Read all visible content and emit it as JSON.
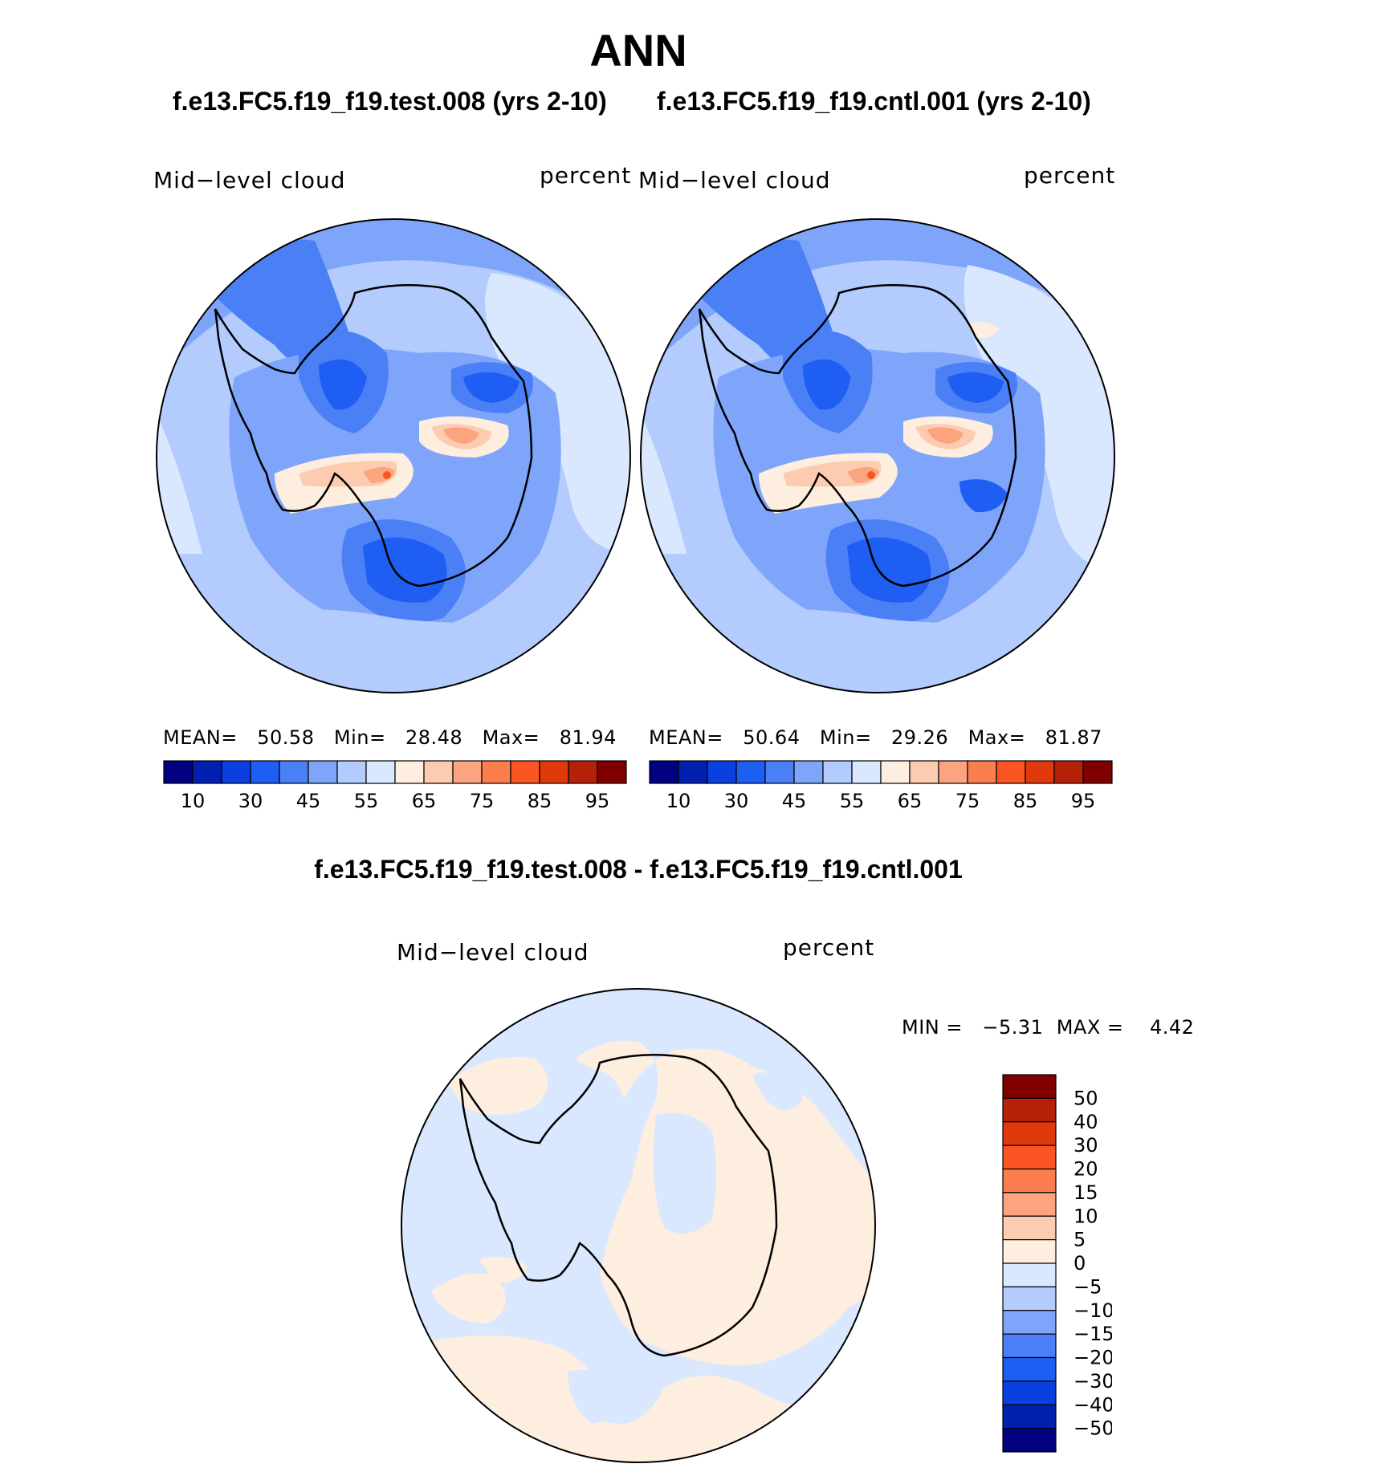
{
  "figure": {
    "season": "ANN",
    "test_case": "f.e13.FC5.f19_f19.test.008 (yrs 2-10)",
    "control_case": "f.e13.FC5.f19_f19.cntl.001 (yrs 2-10)",
    "difference_title": "f.e13.FC5.f19_f19.test.008 - f.e13.FC5.f19_f19.cntl.001"
  },
  "panels": [
    {
      "variable": "Mid−level cloud",
      "units": "percent",
      "mean_label": "MEAN=",
      "mean": "50.58",
      "min_label": "Min=",
      "min": "28.48",
      "max_label": "Max=",
      "max": "81.94"
    },
    {
      "variable": "Mid−level cloud",
      "units": "percent",
      "mean_label": "MEAN=",
      "mean": "50.64",
      "min_label": "Min=",
      "min": "29.26",
      "max_label": "Max=",
      "max": "81.87"
    }
  ],
  "diff_panel": {
    "variable": "Mid−level cloud",
    "units": "percent",
    "min_label": "MIN =",
    "min": "−5.31",
    "max_label": "MAX =",
    "max": "4.42"
  },
  "colorbar_abs": {
    "colors": [
      "#000080",
      "#0020b0",
      "#0a40e0",
      "#1f5ef2",
      "#4a7ff6",
      "#7fa5fb",
      "#b3cbfd",
      "#d9e8fe",
      "#feeee0",
      "#fdcbb0",
      "#fca480",
      "#fb7f4e",
      "#fa5522",
      "#e03a0c",
      "#b52008",
      "#800000"
    ],
    "tick_labels": [
      "10",
      "30",
      "45",
      "55",
      "65",
      "75",
      "85",
      "95"
    ]
  },
  "colorbar_diff": {
    "colors": [
      "#800000",
      "#b52008",
      "#e03a0c",
      "#fa5522",
      "#fb7f4e",
      "#fca480",
      "#fdcbb0",
      "#feeee0",
      "#d9e8fe",
      "#b3cbfd",
      "#7fa5fb",
      "#4a7ff6",
      "#1f5ef2",
      "#0a40e0",
      "#0020b0",
      "#000080"
    ],
    "tick_labels": [
      "50",
      "40",
      "30",
      "20",
      "15",
      "10",
      "5",
      "0",
      "−5",
      "−10",
      "−15",
      "−20",
      "−30",
      "−40",
      "−50"
    ]
  }
}
